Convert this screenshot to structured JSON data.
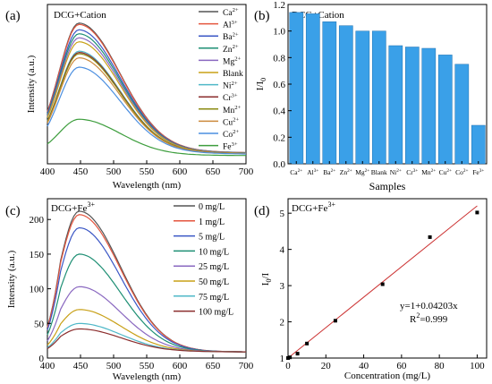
{
  "chart_data": [
    {
      "panel": "(a)",
      "type": "line",
      "title": "DCG+Cation",
      "xlabel": "Wavelength (nm)",
      "ylabel": "Intensity (a.u.)",
      "xlim": [
        400,
        700
      ],
      "xticks": [
        "400",
        "450",
        "500",
        "550",
        "600",
        "650",
        "700"
      ],
      "legend_position": "right",
      "series": [
        {
          "base": "Ca",
          "sup": "2+",
          "color": "#555555",
          "peak": 1.0
        },
        {
          "base": "Al",
          "sup": "3+",
          "color": "#e4553e",
          "peak": 0.99
        },
        {
          "base": "Ba",
          "sup": "2+",
          "color": "#3a56c5",
          "peak": 0.95
        },
        {
          "base": "Zn",
          "sup": "2+",
          "color": "#1e8f74",
          "peak": 0.92
        },
        {
          "base": "Mg",
          "sup": "2+",
          "color": "#8a68c0",
          "peak": 0.89
        },
        {
          "base": "Blank",
          "sup": "",
          "color": "#c8a017",
          "peak": 0.86
        },
        {
          "base": "Ni",
          "sup": "2+",
          "color": "#4fb8c8",
          "peak": 0.79
        },
        {
          "base": "Cr",
          "sup": "3+",
          "color": "#8b2d2d",
          "peak": 0.78
        },
        {
          "base": "Mn",
          "sup": "2+",
          "color": "#8a8a12",
          "peak": 0.77
        },
        {
          "base": "Cu",
          "sup": "2+",
          "color": "#cc8a3c",
          "peak": 0.74
        },
        {
          "base": "Co",
          "sup": "2+",
          "color": "#4c8fe0",
          "peak": 0.67
        },
        {
          "base": "Fe",
          "sup": "3+",
          "color": "#3e9e3e",
          "peak": 0.28
        }
      ]
    },
    {
      "panel": "(b)",
      "type": "bar",
      "title": "DCG+Cation",
      "xlabel": "Samples",
      "ylabel_base": "I/I",
      "ylabel_sub": "0",
      "ylim": [
        0,
        1.2
      ],
      "yticks": [
        "0.0",
        "0.2",
        "0.4",
        "0.6",
        "0.8",
        "1.0",
        "1.2"
      ],
      "bar_color": "#3aa0e8",
      "categories": [
        {
          "base": "Ca",
          "sup": "2+"
        },
        {
          "base": "Al",
          "sup": "3+"
        },
        {
          "base": "Ba",
          "sup": "2+"
        },
        {
          "base": "Zn",
          "sup": "2+"
        },
        {
          "base": "Mg",
          "sup": "2+"
        },
        {
          "base": "Blank",
          "sup": ""
        },
        {
          "base": "Ni",
          "sup": "2+"
        },
        {
          "base": "Cr",
          "sup": "3+"
        },
        {
          "base": "Mn",
          "sup": "2+"
        },
        {
          "base": "Cu",
          "sup": "2+"
        },
        {
          "base": "Co",
          "sup": "2+"
        },
        {
          "base": "Fe",
          "sup": "3+"
        }
      ],
      "values": [
        1.14,
        1.13,
        1.07,
        1.04,
        1.0,
        1.0,
        0.89,
        0.88,
        0.87,
        0.82,
        0.75,
        0.29
      ]
    },
    {
      "panel": "(c)",
      "type": "line",
      "title_base": "DCG+Fe",
      "title_sup": "3+",
      "xlabel": "Wavelength (nm)",
      "ylabel": "Intensity (a.u.)",
      "xlim": [
        400,
        700
      ],
      "ylim": [
        0,
        230
      ],
      "xticks": [
        "400",
        "450",
        "500",
        "550",
        "600",
        "650",
        "700"
      ],
      "yticks": [
        "0",
        "50",
        "100",
        "150",
        "200"
      ],
      "legend_position": "right",
      "series": [
        {
          "name": "0 mg/L",
          "color": "#555555",
          "peak": 212
        },
        {
          "name": "1 mg/L",
          "color": "#e4553e",
          "peak": 207
        },
        {
          "name": "5 mg/L",
          "color": "#3a56c5",
          "peak": 188
        },
        {
          "name": "10 mg/L",
          "color": "#1e8f74",
          "peak": 150
        },
        {
          "name": "25 mg/L",
          "color": "#8a68c0",
          "peak": 103
        },
        {
          "name": "50 mg/L",
          "color": "#c8a017",
          "peak": 70
        },
        {
          "name": "75 mg/L",
          "color": "#4fb8c8",
          "peak": 50
        },
        {
          "name": "100 mg/L",
          "color": "#8b2d2d",
          "peak": 42
        }
      ]
    },
    {
      "panel": "(d)",
      "type": "scatter",
      "title_base": "DCG+Fe",
      "title_sup": "3+",
      "xlabel": "Concentration (mg/L)",
      "ylabel_base": "I",
      "ylabel_sub": "0",
      "ylabel_tail": "/I",
      "xlim": [
        0,
        105
      ],
      "ylim": [
        1,
        5.4
      ],
      "xticks": [
        "0",
        "20",
        "40",
        "60",
        "80",
        "100"
      ],
      "yticks": [
        "1",
        "2",
        "3",
        "4",
        "5"
      ],
      "x": [
        0,
        1,
        5,
        10,
        25,
        50,
        75,
        100
      ],
      "y": [
        1.0,
        1.02,
        1.12,
        1.4,
        2.03,
        3.04,
        4.34,
        5.02
      ],
      "fit_intercept": 1,
      "fit_slope": 0.04203,
      "fit_color": "#cc3333",
      "equation": "y=1+0.04203x",
      "r2_base": "R",
      "r2_sup": "2",
      "r2_tail": "=0.999"
    }
  ]
}
